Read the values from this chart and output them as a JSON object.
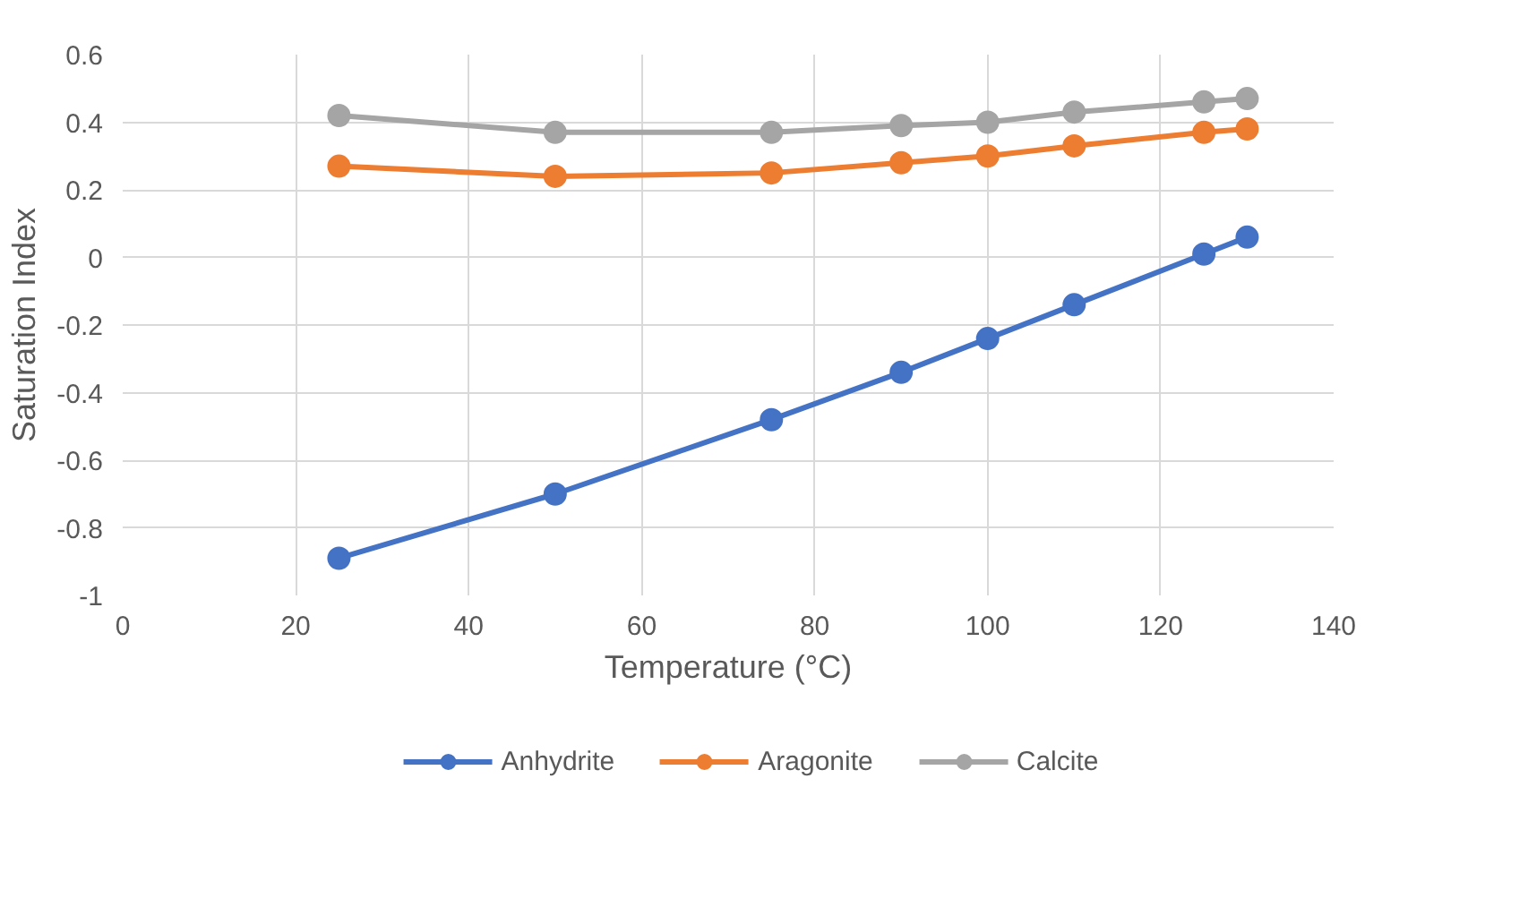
{
  "chart_data": {
    "type": "line",
    "xlabel": "Temperature (°C)",
    "ylabel": "Saturation Index",
    "x": [
      25,
      50,
      75,
      90,
      100,
      110,
      125,
      130
    ],
    "series": [
      {
        "name": "Anhydrite",
        "color": "#4472c4",
        "values": [
          -0.89,
          -0.7,
          -0.48,
          -0.34,
          -0.24,
          -0.14,
          0.01,
          0.06
        ]
      },
      {
        "name": "Aragonite",
        "color": "#ed7d31",
        "values": [
          0.27,
          0.24,
          0.25,
          0.28,
          0.3,
          0.33,
          0.37,
          0.38
        ]
      },
      {
        "name": "Calcite",
        "color": "#a5a5a5",
        "values": [
          0.42,
          0.37,
          0.37,
          0.39,
          0.4,
          0.43,
          0.46,
          0.47
        ]
      }
    ],
    "xlim": [
      0,
      140
    ],
    "xticks": [
      0,
      20,
      40,
      60,
      80,
      100,
      120,
      140
    ],
    "ylim": [
      -1,
      0.6
    ],
    "yticks": [
      {
        "value": -1,
        "label": "-1"
      },
      {
        "value": -0.8,
        "label": "-0.8"
      },
      {
        "value": -0.6,
        "label": "-0.6"
      },
      {
        "value": -0.4,
        "label": "-0.4"
      },
      {
        "value": -0.2,
        "label": "-0.2"
      },
      0,
      {
        "value": 0.2,
        "label": "0.2"
      },
      {
        "value": 0.4,
        "label": "0.4"
      },
      {
        "value": 0.6,
        "label": "0.6"
      }
    ],
    "grid": true,
    "legend": "bottom",
    "marker": "circle",
    "line_style": "solid"
  }
}
